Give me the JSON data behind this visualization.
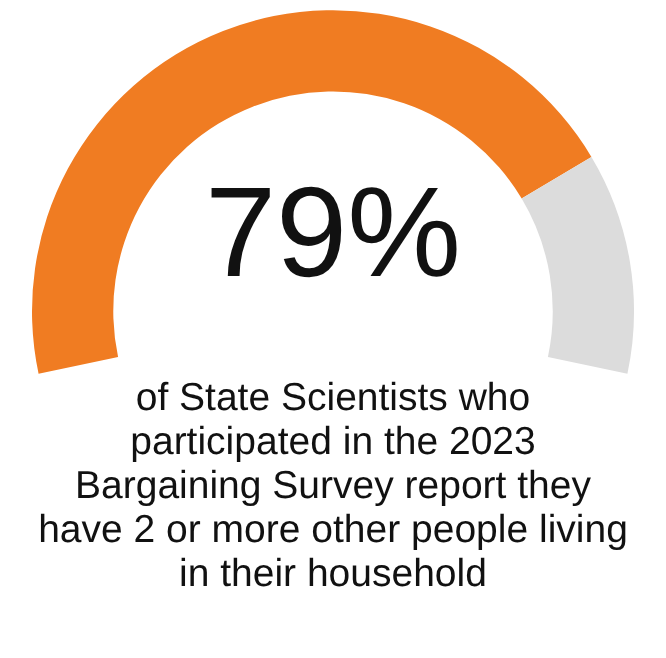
{
  "chart_data": {
    "type": "donut",
    "title": "of State Scientists who participated in the 2023 Bargaining Survey report they have 2 or more other people living in their household",
    "categories": [
      null,
      null
    ],
    "values": [
      79,
      21
    ],
    "colors": [
      "#f07c22",
      "#dcdcdc"
    ],
    "value_labels": [
      "79%",
      null
    ]
  }
}
